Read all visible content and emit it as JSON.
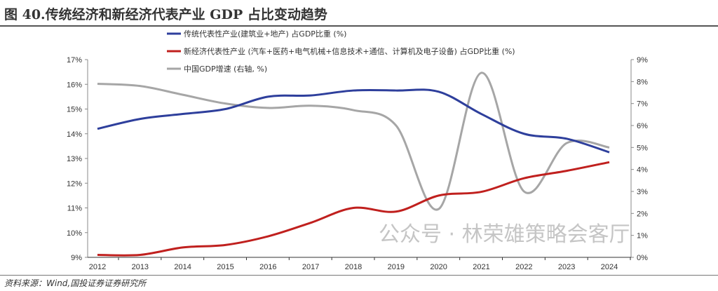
{
  "title": "图 40.传统经济和新经济代表产业 GDP 占比变动趋势",
  "source": "资料来源：Wind,国投证券证券研究所",
  "watermark": "公众号 · 林荣雄策略会客厅",
  "chart_data": {
    "type": "line",
    "title": "传统经济和新经济代表产业 GDP 占比变动趋势",
    "x": [
      "2012",
      "2013",
      "2014",
      "2015",
      "2016",
      "2017",
      "2018",
      "2019",
      "2020",
      "2021",
      "2022",
      "2023",
      "2024"
    ],
    "ylim": [
      9,
      17
    ],
    "y_ticks": [
      "9%",
      "10%",
      "11%",
      "12%",
      "13%",
      "14%",
      "15%",
      "16%",
      "17%"
    ],
    "y2lim": [
      0,
      9
    ],
    "y2_ticks": [
      "0%",
      "1%",
      "2%",
      "3%",
      "4%",
      "5%",
      "6%",
      "7%",
      "8%",
      "9%"
    ],
    "legend_placement": "top",
    "series": [
      {
        "name": "传统代表性产业(建筑业+地产) 占GDP比重 (%)",
        "axis": "left",
        "color": "#2e3f9c",
        "values": [
          14.2,
          14.6,
          14.8,
          15.0,
          15.5,
          15.55,
          15.75,
          15.75,
          15.7,
          14.8,
          14.0,
          13.8,
          13.25
        ]
      },
      {
        "name": "新经济代表性产业 (汽车+医药+电气机械+信息技术+通信、计算机及电子设备) 占GDP比重 (%)",
        "axis": "left",
        "color": "#c0201e",
        "values": [
          9.1,
          9.1,
          9.4,
          9.5,
          9.85,
          10.4,
          11.0,
          10.85,
          11.5,
          11.65,
          12.2,
          12.5,
          12.85
        ]
      },
      {
        "name": "中国GDP增速 (右轴, %)",
        "axis": "right",
        "color": "#a6a6a6",
        "values": [
          7.9,
          7.8,
          7.4,
          7.0,
          6.8,
          6.9,
          6.7,
          6.0,
          2.2,
          8.4,
          3.0,
          5.2,
          5.0
        ]
      }
    ]
  }
}
